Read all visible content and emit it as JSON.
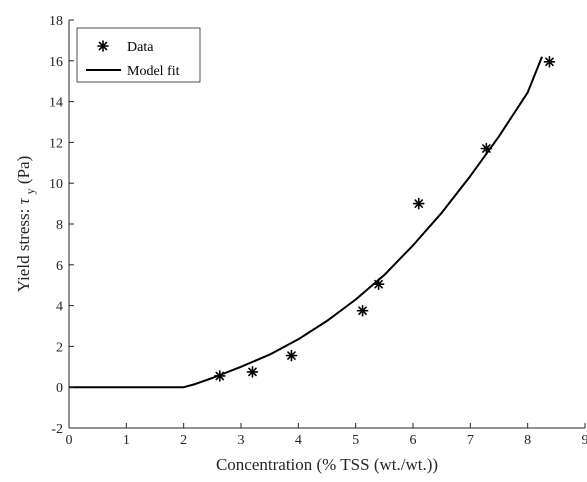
{
  "chart_data": {
    "type": "scatter",
    "xlabel": "Concentration (% TSS (wt./wt.))",
    "ylabel": {
      "prefix": "Yield stress: ",
      "symbol": "τ",
      "subscript": "y",
      "suffix": " (Pa)"
    },
    "xlim": [
      0,
      9
    ],
    "ylim": [
      -2,
      18
    ],
    "xticks": [
      0,
      1,
      2,
      3,
      4,
      5,
      6,
      7,
      8,
      9
    ],
    "yticks": [
      -2,
      0,
      2,
      4,
      6,
      8,
      10,
      12,
      14,
      16,
      18
    ],
    "grid": false,
    "legend_position": "top-left",
    "series": [
      {
        "name": "Data",
        "kind": "markers",
        "marker": "asterisk",
        "color": "#000000",
        "x": [
          2.63,
          3.2,
          3.88,
          5.12,
          5.4,
          6.1,
          7.28,
          8.38
        ],
        "y": [
          0.55,
          0.75,
          1.55,
          3.75,
          5.05,
          9.0,
          11.7,
          15.95
        ]
      },
      {
        "name": "Model fit",
        "kind": "line",
        "color": "#000000",
        "x": [
          0,
          2.0,
          2.2,
          2.5,
          3.0,
          3.5,
          4.0,
          4.5,
          5.0,
          5.5,
          6.0,
          6.5,
          7.0,
          7.5,
          8.0,
          8.25
        ],
        "y": [
          0,
          0,
          0.15,
          0.45,
          1.0,
          1.6,
          2.35,
          3.25,
          4.3,
          5.5,
          6.95,
          8.55,
          10.35,
          12.3,
          14.45,
          16.2
        ]
      }
    ]
  }
}
